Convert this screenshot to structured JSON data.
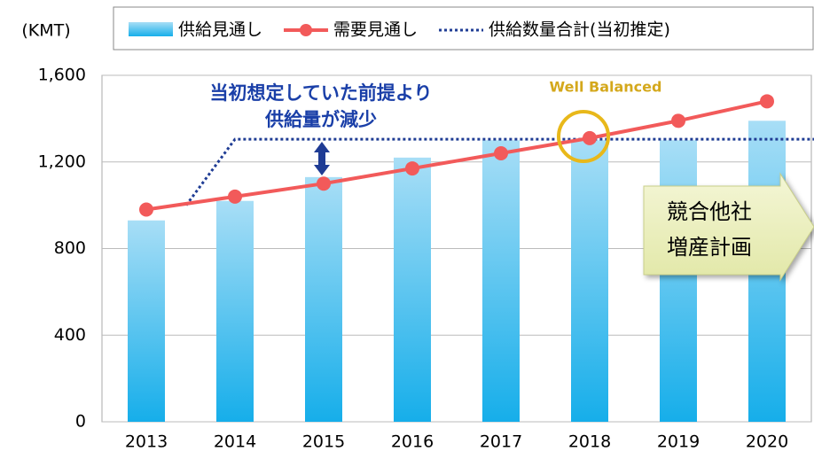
{
  "chart_data": {
    "type": "bar",
    "y_label": "(KMT)",
    "categories": [
      "2013",
      "2014",
      "2015",
      "2016",
      "2017",
      "2018",
      "2019",
      "2020"
    ],
    "ylim": [
      0,
      1600
    ],
    "yticks": [
      0,
      400,
      800,
      {
        "value": 1200,
        "label": "1,200"
      },
      {
        "value": 1600,
        "label": "1,600"
      }
    ],
    "grid": true,
    "series": [
      {
        "name": "供給見通し",
        "type": "bar",
        "color": "#29b4ec",
        "values": [
          930,
          1020,
          1130,
          1220,
          1300,
          1300,
          1300,
          1390
        ]
      },
      {
        "name": "需要見通し",
        "type": "line",
        "color": "#f25a5a",
        "values": [
          980,
          1040,
          1100,
          1170,
          1240,
          1310,
          1390,
          1480
        ]
      },
      {
        "name": "供給数量合計(当初推定)",
        "type": "line",
        "style": "dotted",
        "color": "#1f3c94",
        "x": [
          2013.45,
          2014,
          2020.55
        ],
        "values": [
          1000,
          1305,
          1305
        ]
      }
    ],
    "annotations": [
      "当初想定していた前提より",
      "供給量が減少",
      "Well Balanced"
    ],
    "callout": [
      "競合他社",
      "増産計画"
    ]
  }
}
